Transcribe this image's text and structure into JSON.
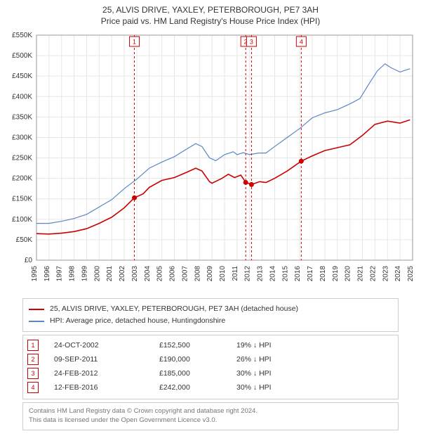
{
  "title_line1": "25, ALVIS DRIVE, YAXLEY, PETERBOROUGH, PE7 3AH",
  "title_line2": "Price paid vs. HM Land Registry's House Price Index (HPI)",
  "chart": {
    "type": "line",
    "background_color": "#ffffff",
    "grid_color": "#e6e6e6",
    "axis_color": "#999999",
    "x_years": [
      1995,
      1996,
      1997,
      1998,
      1999,
      2000,
      2001,
      2002,
      2003,
      2004,
      2005,
      2006,
      2007,
      2008,
      2009,
      2010,
      2011,
      2012,
      2013,
      2014,
      2015,
      2016,
      2017,
      2018,
      2019,
      2020,
      2021,
      2022,
      2023,
      2024,
      2025
    ],
    "y_ticks": [
      0,
      50000,
      100000,
      150000,
      200000,
      250000,
      300000,
      350000,
      400000,
      450000,
      500000,
      550000
    ],
    "y_tick_labels": [
      "£0",
      "£50K",
      "£100K",
      "£150K",
      "£200K",
      "£250K",
      "£300K",
      "£350K",
      "£400K",
      "£450K",
      "£500K",
      "£550K"
    ],
    "ylim": [
      0,
      550000
    ],
    "xlim": [
      1995,
      2025
    ],
    "series_red": {
      "label": "25, ALVIS DRIVE, YAXLEY, PETERBOROUGH, PE7 3AH (detached house)",
      "color": "#cc0000",
      "line_width": 1.6,
      "points": [
        [
          1995.0,
          65000
        ],
        [
          1996.0,
          64000
        ],
        [
          1997.0,
          66000
        ],
        [
          1998.0,
          70000
        ],
        [
          1999.0,
          77000
        ],
        [
          2000.0,
          90000
        ],
        [
          2001.0,
          105000
        ],
        [
          2002.0,
          128000
        ],
        [
          2002.8,
          152500
        ],
        [
          2003.5,
          162000
        ],
        [
          2004.0,
          178000
        ],
        [
          2005.0,
          195000
        ],
        [
          2006.0,
          202000
        ],
        [
          2007.0,
          215000
        ],
        [
          2007.7,
          225000
        ],
        [
          2008.2,
          218000
        ],
        [
          2008.8,
          192000
        ],
        [
          2009.0,
          188000
        ],
        [
          2009.8,
          200000
        ],
        [
          2010.3,
          210000
        ],
        [
          2010.8,
          202000
        ],
        [
          2011.3,
          208000
        ],
        [
          2011.7,
          190000
        ],
        [
          2012.15,
          185000
        ],
        [
          2012.8,
          192000
        ],
        [
          2013.3,
          190000
        ],
        [
          2014.0,
          200000
        ],
        [
          2015.0,
          218000
        ],
        [
          2016.12,
          242000
        ],
        [
          2017.0,
          255000
        ],
        [
          2018.0,
          268000
        ],
        [
          2019.0,
          275000
        ],
        [
          2020.0,
          282000
        ],
        [
          2021.0,
          305000
        ],
        [
          2022.0,
          332000
        ],
        [
          2023.0,
          340000
        ],
        [
          2024.0,
          335000
        ],
        [
          2024.8,
          343000
        ]
      ]
    },
    "series_blue": {
      "label": "HPI: Average price, detached house, Huntingdonshire",
      "color": "#5b86c4",
      "line_width": 1.2,
      "points": [
        [
          1995.0,
          90000
        ],
        [
          1996.0,
          90000
        ],
        [
          1997.0,
          95000
        ],
        [
          1998.0,
          102000
        ],
        [
          1999.0,
          112000
        ],
        [
          2000.0,
          130000
        ],
        [
          2001.0,
          148000
        ],
        [
          2002.0,
          175000
        ],
        [
          2003.0,
          198000
        ],
        [
          2004.0,
          225000
        ],
        [
          2005.0,
          240000
        ],
        [
          2006.0,
          253000
        ],
        [
          2007.0,
          272000
        ],
        [
          2007.7,
          285000
        ],
        [
          2008.2,
          278000
        ],
        [
          2008.8,
          250000
        ],
        [
          2009.3,
          243000
        ],
        [
          2010.0,
          258000
        ],
        [
          2010.7,
          265000
        ],
        [
          2011.0,
          258000
        ],
        [
          2011.5,
          263000
        ],
        [
          2012.0,
          258000
        ],
        [
          2012.7,
          262000
        ],
        [
          2013.3,
          262000
        ],
        [
          2014.0,
          278000
        ],
        [
          2015.0,
          300000
        ],
        [
          2016.0,
          322000
        ],
        [
          2017.0,
          348000
        ],
        [
          2018.0,
          360000
        ],
        [
          2019.0,
          368000
        ],
        [
          2020.0,
          382000
        ],
        [
          2020.8,
          395000
        ],
        [
          2021.5,
          430000
        ],
        [
          2022.2,
          463000
        ],
        [
          2022.8,
          480000
        ],
        [
          2023.3,
          470000
        ],
        [
          2024.0,
          460000
        ],
        [
          2024.8,
          468000
        ]
      ]
    },
    "sale_markers": [
      {
        "n": "1",
        "x": 2002.81,
        "date": "24-OCT-2002",
        "price": 152500,
        "price_fmt": "£152,500",
        "diff": "19% ↓ HPI"
      },
      {
        "n": "2",
        "x": 2011.69,
        "date": "09-SEP-2011",
        "price": 190000,
        "price_fmt": "£190,000",
        "diff": "26% ↓ HPI"
      },
      {
        "n": "3",
        "x": 2012.15,
        "date": "24-FEB-2012",
        "price": 185000,
        "price_fmt": "£185,000",
        "diff": "30% ↓ HPI"
      },
      {
        "n": "4",
        "x": 2016.12,
        "date": "12-FEB-2016",
        "price": 242000,
        "price_fmt": "£242,000",
        "diff": "30% ↓ HPI"
      }
    ],
    "marker_box": {
      "stroke": "#cc0000",
      "fill": "#ffffff",
      "text_color": "#cc0000",
      "size": 14
    },
    "dashed_color": "#cc0000",
    "dot_radius": 3.5
  },
  "legend": {
    "border_color": "#cccccc",
    "items": [
      {
        "color": "#cc0000",
        "label": "25, ALVIS DRIVE, YAXLEY, PETERBOROUGH, PE7 3AH (detached house)"
      },
      {
        "color": "#5b86c4",
        "label": "HPI: Average price, detached house, Huntingdonshire"
      }
    ]
  },
  "footnote_line1": "Contains HM Land Registry data © Crown copyright and database right 2024.",
  "footnote_line2": "This data is licensed under the Open Government Licence v3.0."
}
